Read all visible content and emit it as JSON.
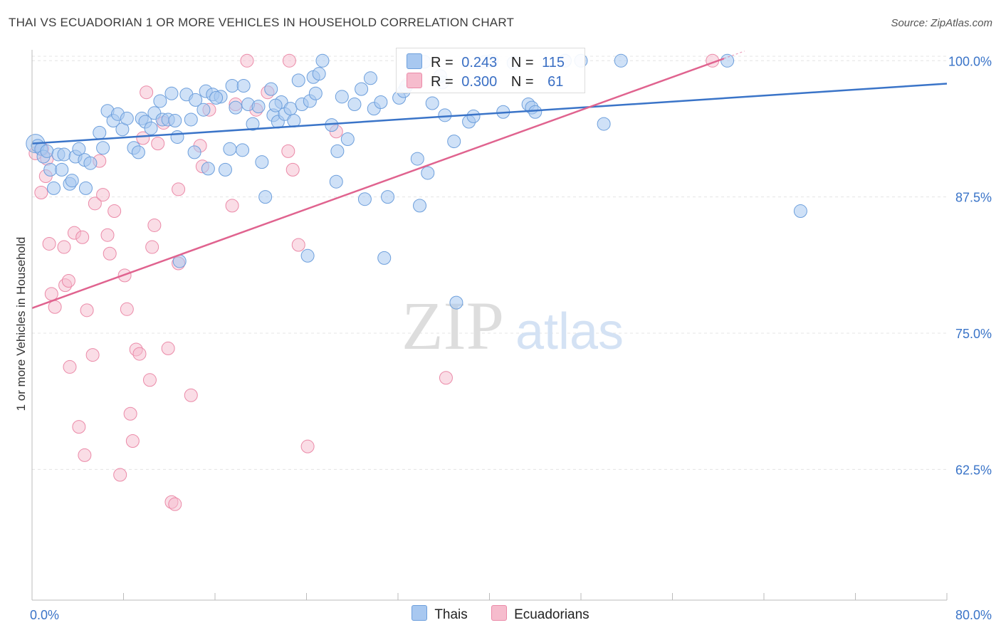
{
  "title": "THAI VS ECUADORIAN 1 OR MORE VEHICLES IN HOUSEHOLD CORRELATION CHART",
  "source": "Source: ZipAtlas.com",
  "watermark": {
    "zip": "ZIP",
    "atlas": "atlas"
  },
  "legend_top": {
    "r_label": "R =",
    "n_label": "N =",
    "rows": [
      {
        "r": "0.243",
        "n": "115",
        "color": "#a8c8f0"
      },
      {
        "r": "0.300",
        "n": "61",
        "color": "#f6bccd"
      }
    ]
  },
  "legend_bottom": [
    "Thais",
    "Ecuadorians"
  ],
  "colors": {
    "thais_fill": "#a8c8f0",
    "thais_stroke": "#6d9fdc",
    "thais_line": "#3a74c8",
    "ecuadorians_fill": "#f6bccd",
    "ecuadorians_stroke": "#eb8aa8",
    "ecuadorians_line": "#e0638f",
    "tick_label": "#3a74c8",
    "grid": "#e4e4e4"
  },
  "chart_data": {
    "type": "scatter",
    "title": "THAI VS ECUADORIAN 1 OR MORE VEHICLES IN HOUSEHOLD CORRELATION CHART",
    "xlabel": "",
    "ylabel": "1 or more Vehicles in Household",
    "xlim": [
      0,
      80
    ],
    "ylim": [
      50.5,
      101
    ],
    "x_tick_labels": [
      "0.0%",
      "80.0%"
    ],
    "y_ticks": [
      62.5,
      75,
      87.5,
      100
    ],
    "y_tick_labels": [
      "62.5%",
      "75.0%",
      "87.5%",
      "100.0%"
    ],
    "grid": true,
    "legend": "bottom",
    "series": [
      {
        "name": "Thais",
        "trend": {
          "x": [
            0,
            80
          ],
          "y": [
            92.4,
            97.9
          ]
        },
        "points": [
          [
            0.3,
            92.4
          ],
          [
            0.5,
            92.2
          ],
          [
            0.8,
            91.9
          ],
          [
            1.0,
            91.2
          ],
          [
            1.3,
            91.7
          ],
          [
            1.6,
            90.0
          ],
          [
            1.9,
            88.3
          ],
          [
            2.3,
            91.4
          ],
          [
            2.8,
            91.4
          ],
          [
            3.3,
            88.7
          ],
          [
            3.8,
            91.2
          ],
          [
            4.1,
            91.9
          ],
          [
            4.6,
            90.9
          ],
          [
            5.1,
            90.6
          ],
          [
            4.7,
            88.3
          ],
          [
            5.9,
            93.4
          ],
          [
            6.2,
            92.0
          ],
          [
            6.6,
            95.4
          ],
          [
            7.1,
            94.5
          ],
          [
            7.5,
            95.1
          ],
          [
            7.9,
            93.7
          ],
          [
            8.3,
            94.7
          ],
          [
            8.9,
            92.0
          ],
          [
            9.6,
            94.7
          ],
          [
            9.9,
            94.4
          ],
          [
            10.4,
            93.8
          ],
          [
            10.7,
            95.2
          ],
          [
            11.2,
            96.3
          ],
          [
            11.4,
            94.6
          ],
          [
            11.9,
            94.6
          ],
          [
            12.2,
            97.0
          ],
          [
            12.5,
            94.5
          ],
          [
            12.7,
            93.0
          ],
          [
            13.5,
            96.9
          ],
          [
            13.9,
            94.6
          ],
          [
            14.2,
            91.6
          ],
          [
            14.3,
            96.4
          ],
          [
            15.0,
            95.5
          ],
          [
            15.2,
            97.2
          ],
          [
            15.4,
            90.1
          ],
          [
            15.8,
            96.9
          ],
          [
            16.5,
            96.7
          ],
          [
            16.9,
            90.0
          ],
          [
            17.3,
            91.9
          ],
          [
            17.5,
            97.7
          ],
          [
            17.8,
            95.7
          ],
          [
            18.4,
            91.8
          ],
          [
            18.5,
            97.7
          ],
          [
            18.9,
            96.0
          ],
          [
            19.3,
            94.2
          ],
          [
            19.8,
            95.8
          ],
          [
            20.1,
            90.7
          ],
          [
            20.4,
            87.5
          ],
          [
            20.9,
            97.4
          ],
          [
            21.1,
            95.0
          ],
          [
            21.5,
            94.4
          ],
          [
            21.8,
            96.2
          ],
          [
            22.1,
            95.1
          ],
          [
            22.6,
            95.6
          ],
          [
            22.9,
            94.5
          ],
          [
            23.3,
            98.2
          ],
          [
            23.6,
            96.0
          ],
          [
            24.3,
            96.3
          ],
          [
            24.6,
            98.5
          ],
          [
            24.8,
            97.0
          ],
          [
            25.1,
            98.8
          ],
          [
            25.4,
            100.0
          ],
          [
            26.2,
            94.1
          ],
          [
            26.7,
            91.7
          ],
          [
            27.1,
            96.7
          ],
          [
            27.6,
            92.8
          ],
          [
            28.2,
            96.0
          ],
          [
            28.8,
            97.4
          ],
          [
            29.1,
            87.3
          ],
          [
            29.6,
            98.4
          ],
          [
            29.9,
            95.6
          ],
          [
            30.5,
            96.2
          ],
          [
            31.1,
            87.5
          ],
          [
            32.1,
            96.6
          ],
          [
            32.5,
            97.2
          ],
          [
            32.7,
            97.6
          ],
          [
            33.7,
            91.0
          ],
          [
            33.9,
            86.7
          ],
          [
            34.6,
            89.7
          ],
          [
            34.3,
            99.9
          ],
          [
            35.0,
            96.1
          ],
          [
            35.9,
            98.0
          ],
          [
            36.1,
            95.0
          ],
          [
            36.9,
            92.6
          ],
          [
            38.2,
            94.4
          ],
          [
            38.6,
            94.9
          ],
          [
            39.6,
            99.9
          ],
          [
            40.2,
            100.0
          ],
          [
            41.2,
            95.3
          ],
          [
            42.1,
            99.8
          ],
          [
            43.4,
            96.0
          ],
          [
            43.7,
            95.7
          ],
          [
            44.0,
            95.3
          ],
          [
            46.6,
            100.0
          ],
          [
            48.0,
            100.0
          ],
          [
            50.0,
            94.2
          ],
          [
            51.5,
            100.0
          ],
          [
            60.8,
            100.0
          ],
          [
            67.2,
            86.2
          ],
          [
            2.6,
            90.0
          ],
          [
            3.5,
            89.0
          ],
          [
            24.1,
            82.1
          ],
          [
            30.8,
            81.9
          ],
          [
            37.1,
            77.8
          ],
          [
            12.9,
            81.6
          ],
          [
            26.6,
            88.9
          ],
          [
            35.7,
            98.6
          ],
          [
            16.1,
            96.6
          ],
          [
            21.3,
            95.9
          ],
          [
            9.3,
            91.6
          ]
        ]
      },
      {
        "name": "Ecuadorians",
        "trend": {
          "x": [
            0,
            60.5
          ],
          "y": [
            77.3,
            100.2
          ]
        },
        "points": [
          [
            0.3,
            91.5
          ],
          [
            0.9,
            91.9
          ],
          [
            1.3,
            91.0
          ],
          [
            0.8,
            87.9
          ],
          [
            1.2,
            89.4
          ],
          [
            1.5,
            83.2
          ],
          [
            1.7,
            78.6
          ],
          [
            2.0,
            77.4
          ],
          [
            2.8,
            82.9
          ],
          [
            2.9,
            79.4
          ],
          [
            3.2,
            79.8
          ],
          [
            3.3,
            71.9
          ],
          [
            3.7,
            84.2
          ],
          [
            4.1,
            66.4
          ],
          [
            4.4,
            83.8
          ],
          [
            4.6,
            63.8
          ],
          [
            4.8,
            77.1
          ],
          [
            5.3,
            73.0
          ],
          [
            5.5,
            86.9
          ],
          [
            5.9,
            90.8
          ],
          [
            6.2,
            87.7
          ],
          [
            6.6,
            84.0
          ],
          [
            6.8,
            82.3
          ],
          [
            7.2,
            86.2
          ],
          [
            7.7,
            62.0
          ],
          [
            8.1,
            80.3
          ],
          [
            8.3,
            77.2
          ],
          [
            8.6,
            67.6
          ],
          [
            8.8,
            65.1
          ],
          [
            9.1,
            73.5
          ],
          [
            9.4,
            73.1
          ],
          [
            9.7,
            92.9
          ],
          [
            10.0,
            97.1
          ],
          [
            10.3,
            70.7
          ],
          [
            10.5,
            82.9
          ],
          [
            10.7,
            84.9
          ],
          [
            11.0,
            92.4
          ],
          [
            11.5,
            94.3
          ],
          [
            11.9,
            73.6
          ],
          [
            12.2,
            59.5
          ],
          [
            12.5,
            59.3
          ],
          [
            12.8,
            81.4
          ],
          [
            12.8,
            88.2
          ],
          [
            13.9,
            69.3
          ],
          [
            14.7,
            92.2
          ],
          [
            14.9,
            90.3
          ],
          [
            15.5,
            95.5
          ],
          [
            17.5,
            86.7
          ],
          [
            17.8,
            96.0
          ],
          [
            18.8,
            100.0
          ],
          [
            19.6,
            95.5
          ],
          [
            20.6,
            97.1
          ],
          [
            22.4,
            91.7
          ],
          [
            22.8,
            90.0
          ],
          [
            23.3,
            83.1
          ],
          [
            24.1,
            64.6
          ],
          [
            26.6,
            93.5
          ],
          [
            32.8,
            97.8
          ],
          [
            36.2,
            70.9
          ],
          [
            59.5,
            100.0
          ],
          [
            22.5,
            100.0
          ]
        ]
      }
    ]
  }
}
